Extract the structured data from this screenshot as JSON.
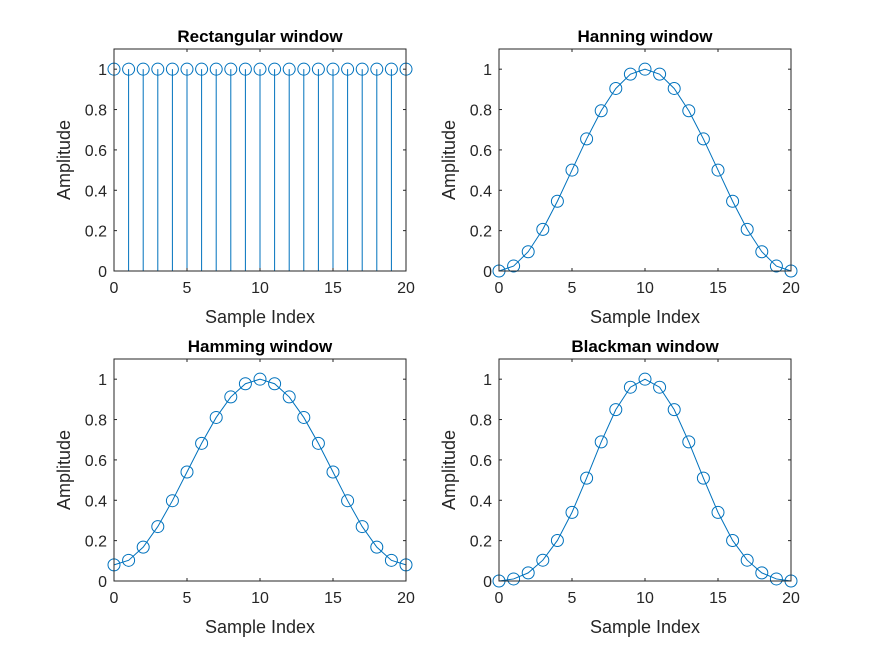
{
  "colors": {
    "series": "#0072BD",
    "axes": "#262626"
  },
  "chart_data": [
    {
      "type": "stem",
      "title": "Rectangular window",
      "xlabel": "Sample Index",
      "ylabel": "Amplitude",
      "xlim": [
        0,
        20
      ],
      "ylim": [
        0,
        1.1
      ],
      "xticks": [
        0,
        5,
        10,
        15,
        20
      ],
      "yticks": [
        0,
        0.2,
        0.4,
        0.6,
        0.8,
        1
      ],
      "x": [
        0,
        1,
        2,
        3,
        4,
        5,
        6,
        7,
        8,
        9,
        10,
        11,
        12,
        13,
        14,
        15,
        16,
        17,
        18,
        19,
        20
      ],
      "y": [
        1,
        1,
        1,
        1,
        1,
        1,
        1,
        1,
        1,
        1,
        1,
        1,
        1,
        1,
        1,
        1,
        1,
        1,
        1,
        1,
        1
      ],
      "grid": false
    },
    {
      "type": "line",
      "title": "Hanning window",
      "xlabel": "Sample Index",
      "ylabel": "Amplitude",
      "xlim": [
        0,
        20
      ],
      "ylim": [
        0,
        1.1
      ],
      "xticks": [
        0,
        5,
        10,
        15,
        20
      ],
      "yticks": [
        0,
        0.2,
        0.4,
        0.6,
        0.8,
        1
      ],
      "x": [
        0,
        1,
        2,
        3,
        4,
        5,
        6,
        7,
        8,
        9,
        10,
        11,
        12,
        13,
        14,
        15,
        16,
        17,
        18,
        19,
        20
      ],
      "y": [
        0,
        0.0245,
        0.0955,
        0.2061,
        0.3455,
        0.5,
        0.6545,
        0.7939,
        0.9045,
        0.9755,
        1,
        0.9755,
        0.9045,
        0.7939,
        0.6545,
        0.5,
        0.3455,
        0.2061,
        0.0955,
        0.0245,
        0
      ],
      "markers": "circle",
      "grid": false
    },
    {
      "type": "line",
      "title": "Hamming window",
      "xlabel": "Sample Index",
      "ylabel": "Amplitude",
      "xlim": [
        0,
        20
      ],
      "ylim": [
        0,
        1.1
      ],
      "xticks": [
        0,
        5,
        10,
        15,
        20
      ],
      "yticks": [
        0,
        0.2,
        0.4,
        0.6,
        0.8,
        1
      ],
      "x": [
        0,
        1,
        2,
        3,
        4,
        5,
        6,
        7,
        8,
        9,
        10,
        11,
        12,
        13,
        14,
        15,
        16,
        17,
        18,
        19,
        20
      ],
      "y": [
        0.08,
        0.1025,
        0.1679,
        0.2696,
        0.3979,
        0.54,
        0.6821,
        0.8104,
        0.9121,
        0.9775,
        1,
        0.9775,
        0.9121,
        0.8104,
        0.6821,
        0.54,
        0.3979,
        0.2696,
        0.1679,
        0.1025,
        0.08
      ],
      "markers": "circle",
      "grid": false
    },
    {
      "type": "line",
      "title": "Blackman window",
      "xlabel": "Sample Index",
      "ylabel": "Amplitude",
      "xlim": [
        0,
        20
      ],
      "ylim": [
        0,
        1.1
      ],
      "xticks": [
        0,
        5,
        10,
        15,
        20
      ],
      "yticks": [
        0,
        0.2,
        0.4,
        0.6,
        0.8,
        1
      ],
      "x": [
        0,
        1,
        2,
        3,
        4,
        5,
        6,
        7,
        8,
        9,
        10,
        11,
        12,
        13,
        14,
        15,
        16,
        17,
        18,
        19,
        20
      ],
      "y": [
        0,
        0.0102,
        0.0402,
        0.103,
        0.2008,
        0.34,
        0.5098,
        0.6892,
        0.8492,
        0.9602,
        1,
        0.9602,
        0.8492,
        0.6892,
        0.5098,
        0.34,
        0.2008,
        0.103,
        0.0402,
        0.0102,
        0
      ],
      "markers": "circle",
      "grid": false
    }
  ]
}
